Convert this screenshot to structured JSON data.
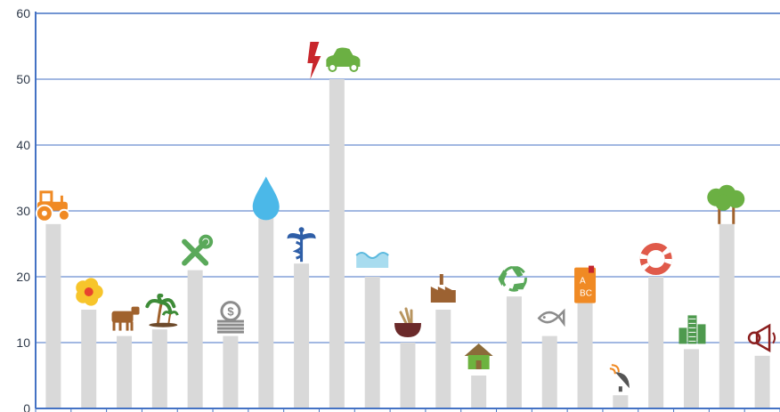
{
  "chart_data": {
    "type": "bar",
    "categories": [
      "",
      "",
      "",
      "",
      "",
      "",
      "",
      "",
      "",
      "",
      "",
      "",
      "",
      "",
      "",
      "",
      "",
      "",
      "",
      "",
      ""
    ],
    "values": [
      28,
      15,
      11,
      12,
      21,
      11,
      29,
      22,
      50,
      20,
      10,
      15,
      5,
      17,
      11,
      16,
      2,
      20,
      9,
      28,
      8
    ],
    "icons": [
      "tractor-icon",
      "hibiscus-flower-icon",
      "cow-icon",
      "palm-tree-icon",
      "wrench-screwdriver-icon",
      "coin-stack-icon",
      "water-drop-icon",
      "caduceus-icon",
      "lightning-car-icon",
      "water-wave-icon",
      "grain-bowl-icon",
      "factory-icon",
      "house-icon",
      "recycle-icon",
      "fish-icon",
      "abc-book-icon",
      "satellite-dish-icon",
      "lifebuoy-icon",
      "city-buildings-icon",
      "trees-icon",
      "megaphone-icon"
    ],
    "ylim": [
      0,
      60
    ],
    "yticks": [
      "0",
      "10",
      "20",
      "30",
      "40",
      "50",
      "60"
    ],
    "grid": true,
    "colors": {
      "bar": "#d9d9d9",
      "grid": "#4472c4",
      "axis": "#4472c4",
      "text": "#2f3a4a",
      "orange": "#f08a24",
      "blue": "#2e5ea7",
      "lightblue": "#4bb8e8",
      "green": "#6bb043",
      "brown": "#a0622d",
      "red": "#c4262e",
      "gray": "#8c8c8c"
    },
    "xlabel": "",
    "ylabel": "",
    "title": ""
  }
}
